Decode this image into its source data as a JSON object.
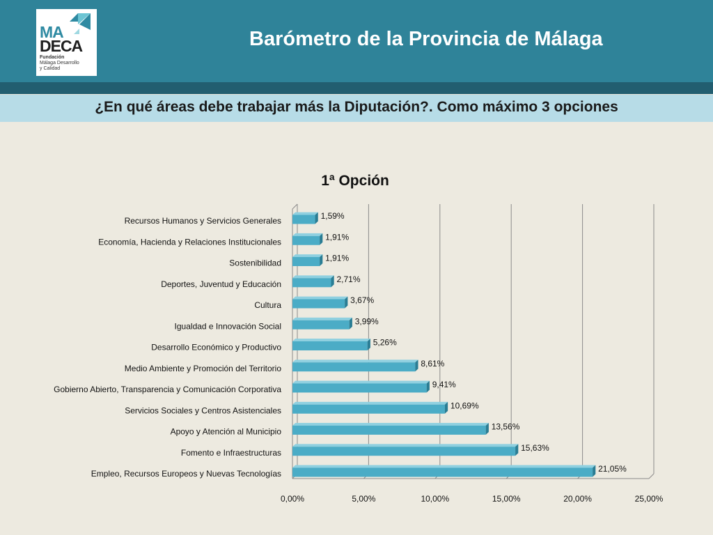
{
  "header": {
    "title": "Barómetro de la Provincia de Málaga",
    "logo": {
      "line1": "MA",
      "line2": "DECA",
      "tagline1": "Fundación",
      "tagline2": "Málaga Desarrollo",
      "tagline3": "y Calidad"
    }
  },
  "question": "¿En qué áreas debe trabajar más la Diputación?. Como máximo 3 opciones",
  "colors": {
    "header": "#2f8399",
    "header_band": "#225e70",
    "question_bar": "#b7dce7",
    "bar": "#4bacc6",
    "background": "#edeae0"
  },
  "chart_data": {
    "type": "bar",
    "orientation": "horizontal",
    "title": "1ª Opción",
    "categories": [
      "Recursos Humanos y Servicios Generales",
      "Economía, Hacienda y Relaciones Institucionales",
      "Sostenibilidad",
      "Deportes, Juventud y Educación",
      "Cultura",
      "Igualdad e Innovación Social",
      "Desarrollo Económico y Productivo",
      "Medio Ambiente y Promoción del Territorio",
      "Gobierno Abierto, Transparencia y Comunicación Corporativa",
      "Servicios Sociales y Centros Asistenciales",
      "Apoyo y Atención al Municipio",
      "Fomento e Infraestructuras",
      "Empleo, Recursos Europeos y Nuevas Tecnologías"
    ],
    "values": [
      1.59,
      1.91,
      1.91,
      2.71,
      3.67,
      3.99,
      5.26,
      8.61,
      9.41,
      10.69,
      13.56,
      15.63,
      21.05
    ],
    "value_labels": [
      "1,59%",
      "1,91%",
      "1,91%",
      "2,71%",
      "3,67%",
      "3,99%",
      "5,26%",
      "8,61%",
      "9,41%",
      "10,69%",
      "13,56%",
      "15,63%",
      "21,05%"
    ],
    "xticks": [
      0,
      5,
      10,
      15,
      20,
      25
    ],
    "xtick_labels": [
      "0,00%",
      "5,00%",
      "10,00%",
      "15,00%",
      "20,00%",
      "25,00%"
    ],
    "xlim": [
      0,
      25
    ],
    "grid": true,
    "style": "3d"
  }
}
